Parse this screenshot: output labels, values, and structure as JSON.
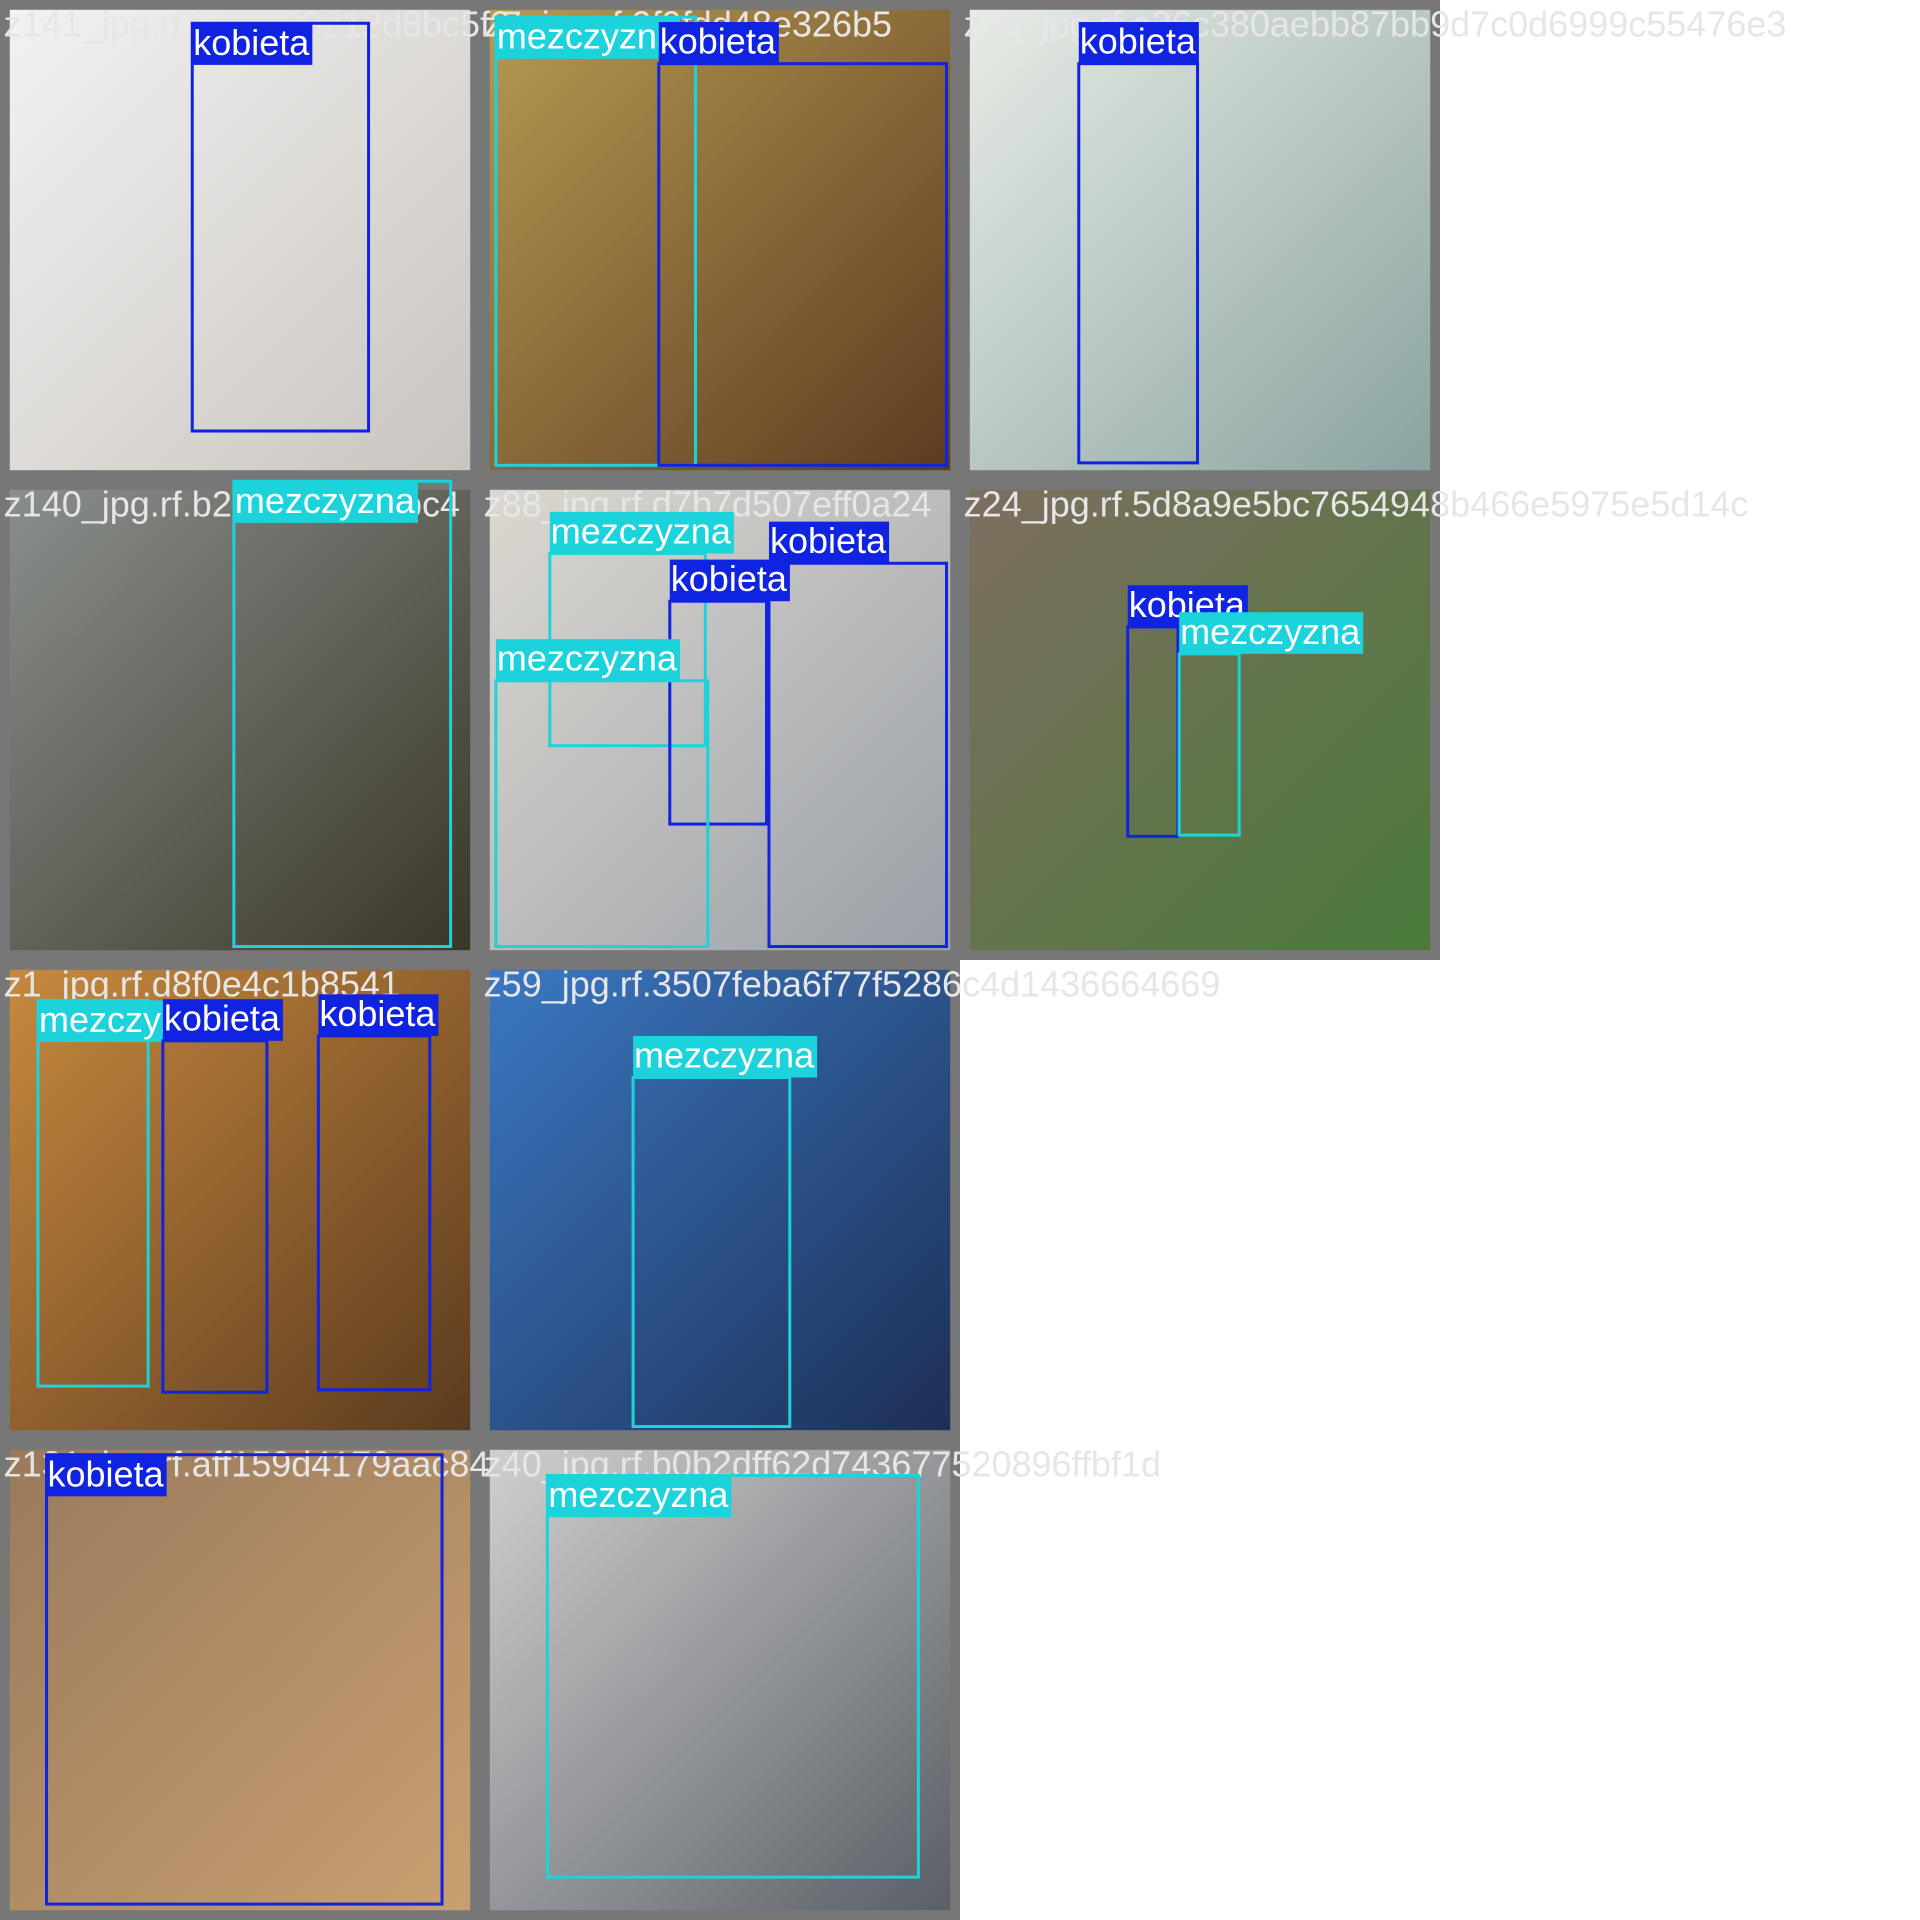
{
  "tiles": [
    {
      "filename": "z141_jpg.rf.f254739212d8bc5f2",
      "boxes": [
        {
          "label": "kobieta",
          "color": "#0f23e0"
        }
      ]
    },
    {
      "filename": "z7_jpg.rf.9f9fdd48e326b5",
      "boxes": [
        {
          "label": "mezczyzna",
          "color": "#1cd3dc"
        },
        {
          "label": "kobieta",
          "color": "#0f23e0"
        }
      ]
    },
    {
      "filename": "z78_jpg.rf.e36c380aebb87bb9d7c0d6999c55476e3",
      "boxes": [
        {
          "label": "kobieta",
          "color": "#0f23e0"
        }
      ]
    },
    {
      "filename": "z140_jpg.rf.b2438b2aef9bc4",
      "boxes": [
        {
          "label": "mezczyzna",
          "color": "#1cd3dc"
        }
      ]
    },
    {
      "filename": "z88_jpg.rf.d7b7d507eff0a24",
      "boxes": [
        {
          "label": "mezczyzna",
          "color": "#1cd3dc"
        },
        {
          "label": "kobieta",
          "color": "#0f23e0"
        },
        {
          "label": "kobieta",
          "color": "#0f23e0"
        },
        {
          "label": "mezczyzna",
          "color": "#1cd3dc"
        }
      ]
    },
    {
      "filename": "z24_jpg.rf.5d8a9e5bc7654948b466e5975e5d14c",
      "boxes": [
        {
          "label": "kobieta",
          "color": "#0f23e0"
        },
        {
          "label": "mezczyzna",
          "color": "#1cd3dc"
        }
      ]
    },
    {
      "filename": "z1_jpg.rf.d8f0e4c1b8541",
      "boxes": [
        {
          "label": "mezczyzna",
          "color": "#1cd3dc"
        },
        {
          "label": "kobieta",
          "color": "#0f23e0"
        },
        {
          "label": "kobieta",
          "color": "#0f23e0"
        }
      ]
    },
    {
      "filename": "z59_jpg.rf.3507feba6f77f5286c4d1436664669",
      "boxes": [
        {
          "label": "mezczyzna",
          "color": "#1cd3dc"
        }
      ]
    },
    {
      "filename": "z131_jpg.rf.aff159d4179aac84",
      "boxes": [
        {
          "label": "kobieta",
          "color": "#0f23e0"
        }
      ]
    },
    {
      "filename": "z40_jpg.rf.b0b2dff62d743677520896ffbf1d",
      "boxes": [
        {
          "label": "mezczyzna",
          "color": "#1cd3dc"
        }
      ]
    }
  ]
}
